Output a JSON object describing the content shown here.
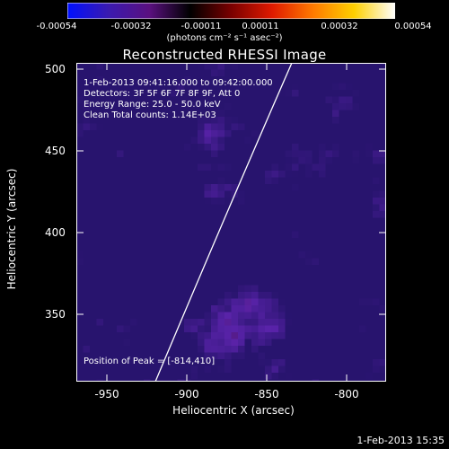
{
  "colorbar": {
    "ticks": [
      "-0.00054",
      "-0.00032",
      "-0.00011",
      "0.00011",
      "0.00032",
      "0.00054"
    ],
    "units": "(photons cm⁻² s⁻¹ asec⁻²)",
    "colors": [
      "#0010ff",
      "#3a1ab0",
      "#5a1080",
      "#000000",
      "#7a0000",
      "#e01a00",
      "#ff7a00",
      "#ffd000",
      "#ffffff"
    ]
  },
  "title": "Reconstructed RHESSI Image",
  "info": {
    "time": "1-Feb-2013 09:41:16.000 to 09:42:00.000",
    "detectors": "Detectors: 3F 5F 6F 7F 8F 9F, Att 0",
    "energy": "Energy Range: 25.0 - 50.0 keV",
    "clean": "Clean     Total counts: 1.14E+03"
  },
  "peak": "Position of Peak = [-814,410]",
  "axes": {
    "xlabel": "Heliocentric X (arcsec)",
    "ylabel": "Heliocentric Y (arcsec)",
    "xticks": [
      "-950",
      "-900",
      "-850",
      "-800"
    ],
    "yticks": [
      "500",
      "450",
      "400",
      "350"
    ]
  },
  "timestamp": "1-Feb-2013 15:35"
}
